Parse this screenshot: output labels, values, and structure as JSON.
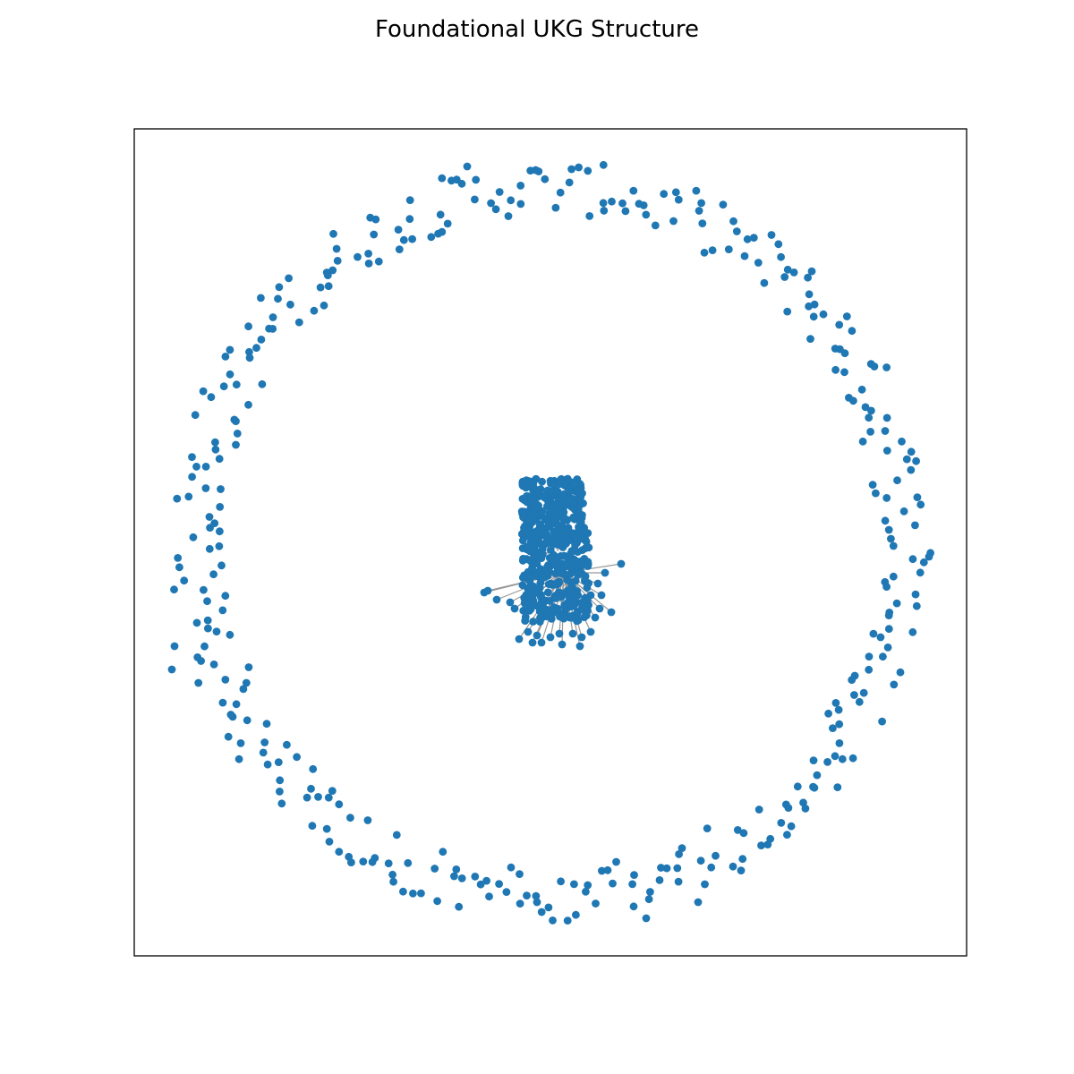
{
  "title": "Foundational UKG Structure",
  "colors": {
    "node": "#1f77b4",
    "edge": "#999999",
    "edge_dark": "#000000",
    "frame": "#000000",
    "background": "#ffffff"
  },
  "graph": {
    "layout": "spring",
    "axes_visible": false,
    "description_of_structure": null
  }
}
